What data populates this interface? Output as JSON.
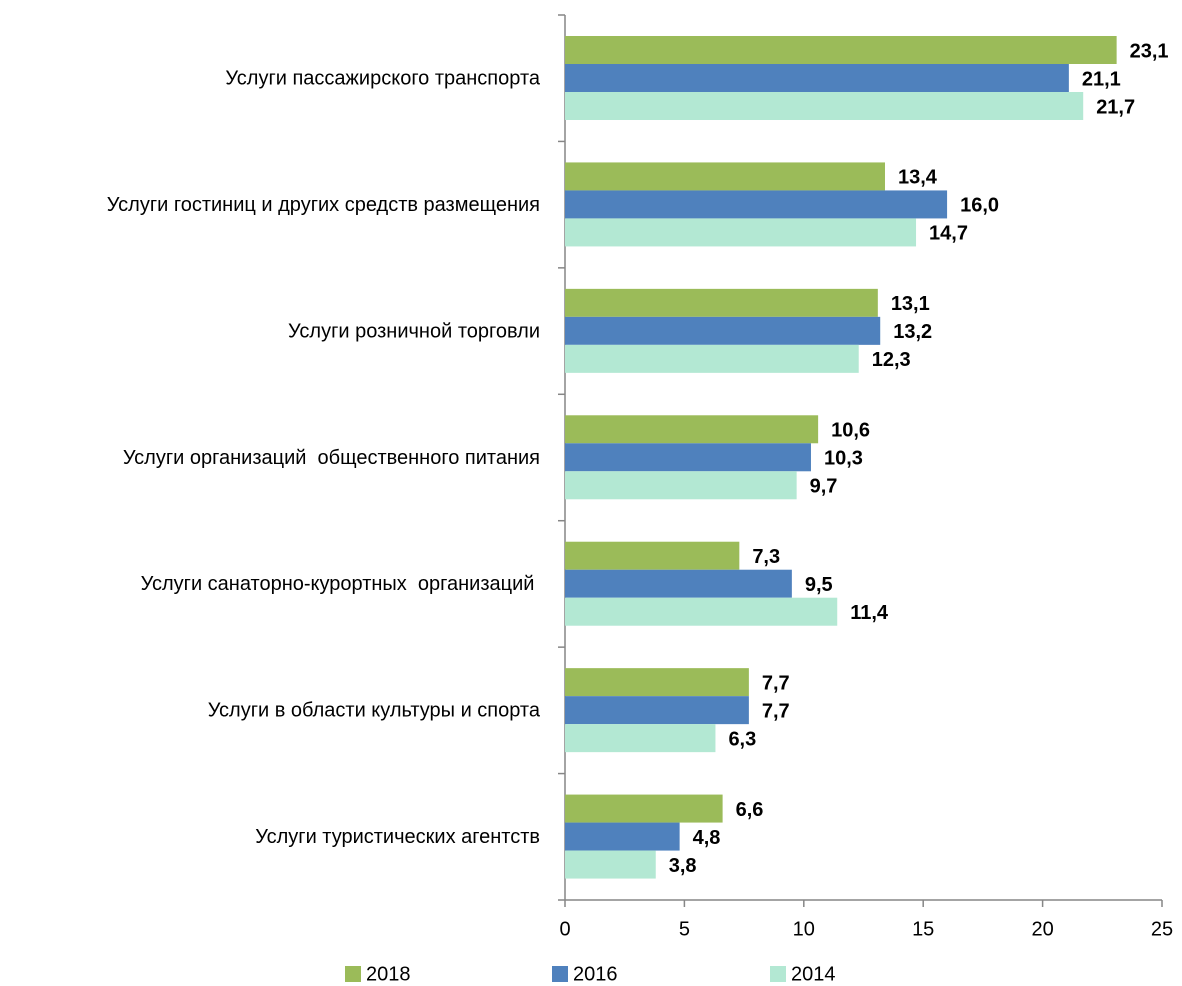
{
  "chart_data": {
    "type": "bar",
    "orientation": "horizontal",
    "categories": [
      "Услуги пассажирского транспорта",
      "Услуги гостиниц и других средств размещения",
      "Услуги розничной торговли",
      "Услуги организаций  общественного питания",
      "Услуги санаторно-курортных  организаций ",
      "Услуги в области культуры и спорта",
      "Услуги туристических агентств"
    ],
    "series": [
      {
        "name": "2018",
        "color": "#9bbb59",
        "values": [
          23.1,
          13.4,
          13.1,
          10.6,
          7.3,
          7.7,
          6.6
        ],
        "value_labels": [
          "23,1",
          "13,4",
          "13,1",
          "10,6",
          "7,3",
          "7,7",
          "6,6"
        ]
      },
      {
        "name": "2016",
        "color": "#4f81bd",
        "values": [
          21.1,
          16.0,
          13.2,
          10.3,
          9.5,
          7.7,
          4.8
        ],
        "value_labels": [
          "21,1",
          "16,0",
          "13,2",
          "10,3",
          "9,5",
          "7,7",
          "4,8"
        ]
      },
      {
        "name": "2014",
        "color": "#b3e8d3",
        "values": [
          21.7,
          14.7,
          12.3,
          9.7,
          11.4,
          6.3,
          3.8
        ],
        "value_labels": [
          "21,7",
          "14,7",
          "12,3",
          "9,7",
          "11,4",
          "6,3",
          "3,8"
        ]
      }
    ],
    "xlim": [
      0,
      25
    ],
    "xticks": [
      0,
      5,
      10,
      15,
      20,
      25
    ],
    "grid": false,
    "legend": "bottom"
  }
}
